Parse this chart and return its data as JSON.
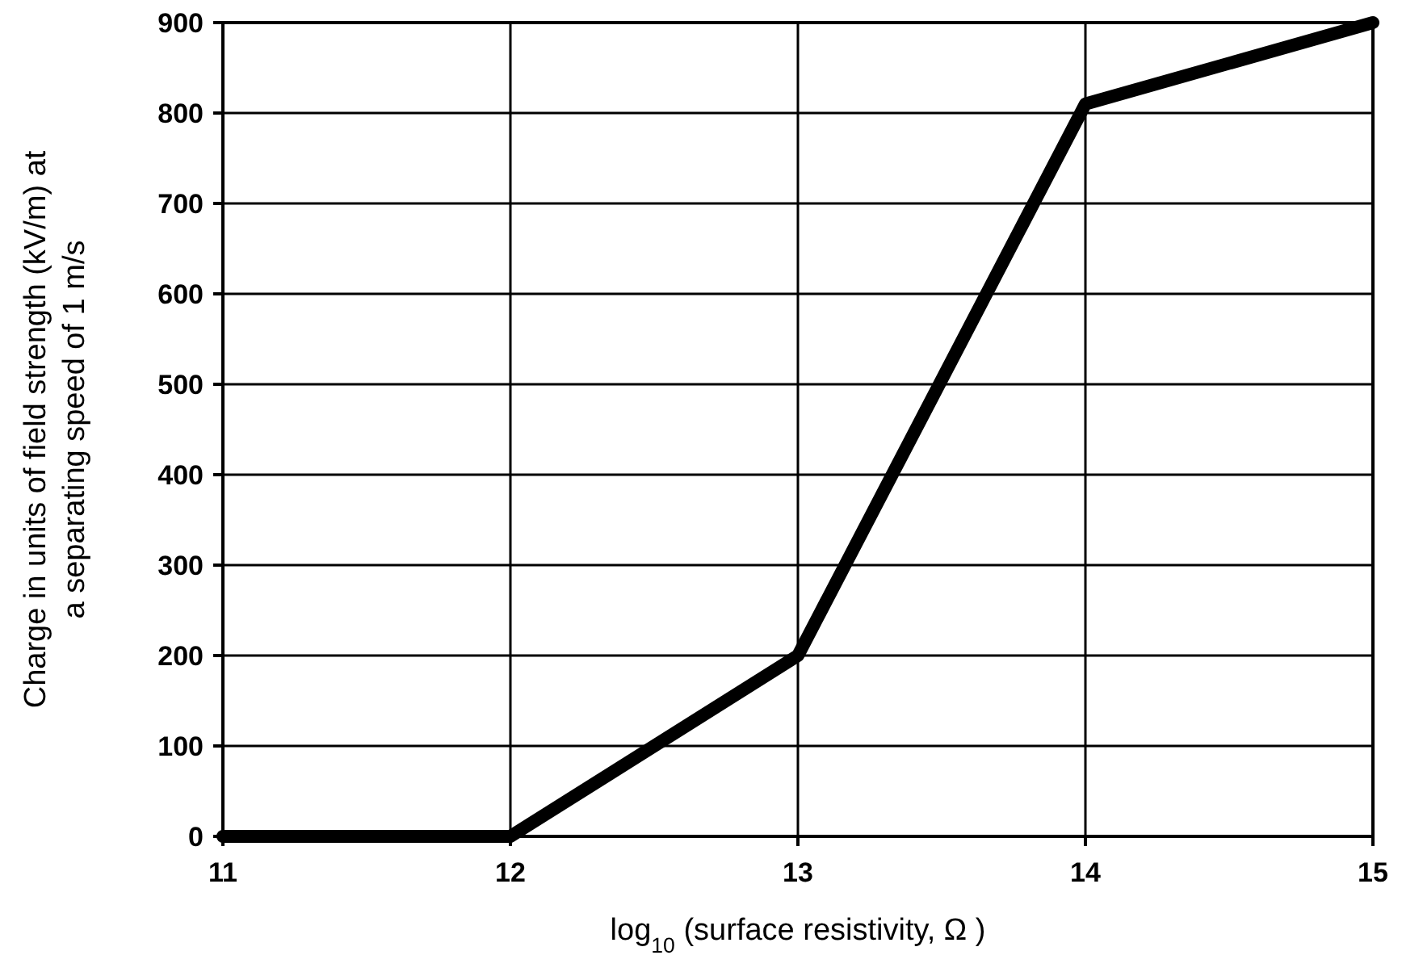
{
  "chart_data": {
    "type": "line",
    "xlabel": "log$_{10}$ (surface resistivity, Ω )",
    "ylabel": "Charge in units of field strength (kV/m) at\na separating speed of 1 m/s",
    "x": [
      11,
      12,
      13,
      14,
      15
    ],
    "series": [
      {
        "color": "#000000",
        "values": [
          0,
          0,
          200,
          810,
          900
        ]
      }
    ],
    "xlim": [
      11,
      15
    ],
    "xticks": [
      11,
      12,
      13,
      14,
      15
    ],
    "ylim": [
      0,
      900
    ],
    "yticks": [
      0,
      100,
      200,
      300,
      400,
      500,
      600,
      700,
      800,
      900
    ],
    "grid": true,
    "marker": "none",
    "line_style": "solid"
  }
}
